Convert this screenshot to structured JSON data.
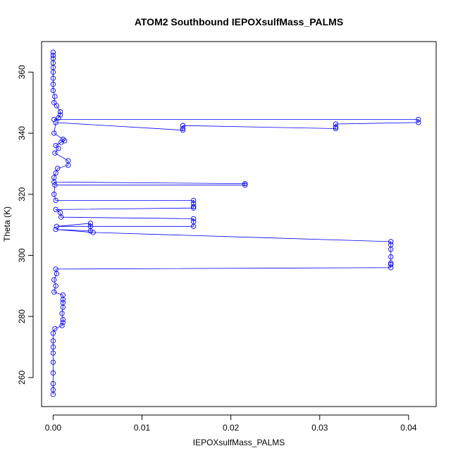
{
  "chart_data": {
    "type": "scatter",
    "title": "ATOM2 Southbound IEPOXsulfMass_PALMS",
    "xlabel": "IEPOXsulfMass_PALMS",
    "ylabel": "Theta (K)",
    "xlim": [
      -0.0013,
      0.0431
    ],
    "ylim": [
      250.5,
      370
    ],
    "xticks": [
      0,
      0.01,
      0.02,
      0.03,
      0.04
    ],
    "xtick_labels": [
      "0.00",
      "0.01",
      "0.02",
      "0.03",
      "0.04"
    ],
    "yticks": [
      260,
      280,
      300,
      320,
      340,
      360
    ],
    "ytick_labels": [
      "260",
      "280",
      "300",
      "320",
      "340",
      "360"
    ],
    "grid": false,
    "series": [
      {
        "color": "#0000ff",
        "marker": "open-circle",
        "line": true,
        "points": [
          [
            0.0,
            366.5
          ],
          [
            0.0,
            365.5
          ],
          [
            0.0,
            364.5
          ],
          [
            0.0,
            363.0
          ],
          [
            0.0,
            361.5
          ],
          [
            0.0,
            360.0
          ],
          [
            0.0,
            358.0
          ],
          [
            0.0,
            356.0
          ],
          [
            0.0,
            354.0
          ],
          [
            0.0002,
            352.0
          ],
          [
            0.0001,
            350.0
          ],
          [
            0.0004,
            349.0
          ],
          [
            0.0008,
            347.0
          ],
          [
            0.0008,
            346.0
          ],
          [
            0.0006,
            345.0
          ],
          [
            0.0001,
            344.5
          ],
          [
            0.0411,
            344.5
          ],
          [
            0.0411,
            343.5
          ],
          [
            0.0318,
            343.0
          ],
          [
            0.0318,
            342.0
          ],
          [
            0.0318,
            341.5
          ],
          [
            0.0146,
            342.5
          ],
          [
            0.0146,
            341.5
          ],
          [
            0.0146,
            341.0
          ],
          [
            0.0003,
            343.5
          ],
          [
            0.0001,
            340.0
          ],
          [
            0.0011,
            338.0
          ],
          [
            0.0013,
            337.5
          ],
          [
            0.0009,
            337.0
          ],
          [
            0.0003,
            336.0
          ],
          [
            0.0006,
            335.0
          ],
          [
            0.0002,
            333.5
          ],
          [
            0.0017,
            331.0
          ],
          [
            0.0017,
            329.5
          ],
          [
            0.0005,
            328.5
          ],
          [
            0.0003,
            327.0
          ],
          [
            0.0001,
            325.5
          ],
          [
            0.0001,
            324.0
          ],
          [
            0.0216,
            323.5
          ],
          [
            0.0216,
            323.0
          ],
          [
            0.0002,
            323.0
          ],
          [
            0.0001,
            320.0
          ],
          [
            0.0003,
            318.0
          ],
          [
            0.0158,
            318.0
          ],
          [
            0.0158,
            317.0
          ],
          [
            0.0158,
            316.0
          ],
          [
            0.0158,
            315.5
          ],
          [
            0.0003,
            315.0
          ],
          [
            0.0008,
            314.0
          ],
          [
            0.0009,
            312.5
          ],
          [
            0.0158,
            312.0
          ],
          [
            0.0158,
            311.0
          ],
          [
            0.0158,
            309.5
          ],
          [
            0.0004,
            309.5
          ],
          [
            0.0042,
            310.5
          ],
          [
            0.0042,
            309.5
          ],
          [
            0.0042,
            308.0
          ],
          [
            0.0003,
            308.5
          ],
          [
            0.0045,
            307.5
          ],
          [
            0.038,
            304.5
          ],
          [
            0.038,
            303.5
          ],
          [
            0.038,
            302.0
          ],
          [
            0.038,
            299.5
          ],
          [
            0.038,
            297.5
          ],
          [
            0.038,
            297.0
          ],
          [
            0.038,
            296.0
          ],
          [
            0.0003,
            295.5
          ],
          [
            0.0004,
            294.0
          ],
          [
            0.0001,
            292.0
          ],
          [
            0.0003,
            290.0
          ],
          [
            0.0001,
            288.0
          ],
          [
            0.0011,
            287.0
          ],
          [
            0.0011,
            285.5
          ],
          [
            0.0011,
            284.5
          ],
          [
            0.0011,
            283.0
          ],
          [
            0.001,
            281.0
          ],
          [
            0.0011,
            279.0
          ],
          [
            0.0011,
            278.0
          ],
          [
            0.001,
            277.0
          ],
          [
            0.0002,
            276.0
          ],
          [
            0.0,
            274.5
          ],
          [
            0.0,
            272.0
          ],
          [
            0.0,
            270.0
          ],
          [
            0.0,
            268.0
          ],
          [
            0.0,
            265.0
          ],
          [
            0.0,
            261.5
          ],
          [
            0.0,
            258.0
          ],
          [
            0.0,
            256.0
          ],
          [
            0.0,
            254.5
          ]
        ]
      }
    ]
  }
}
